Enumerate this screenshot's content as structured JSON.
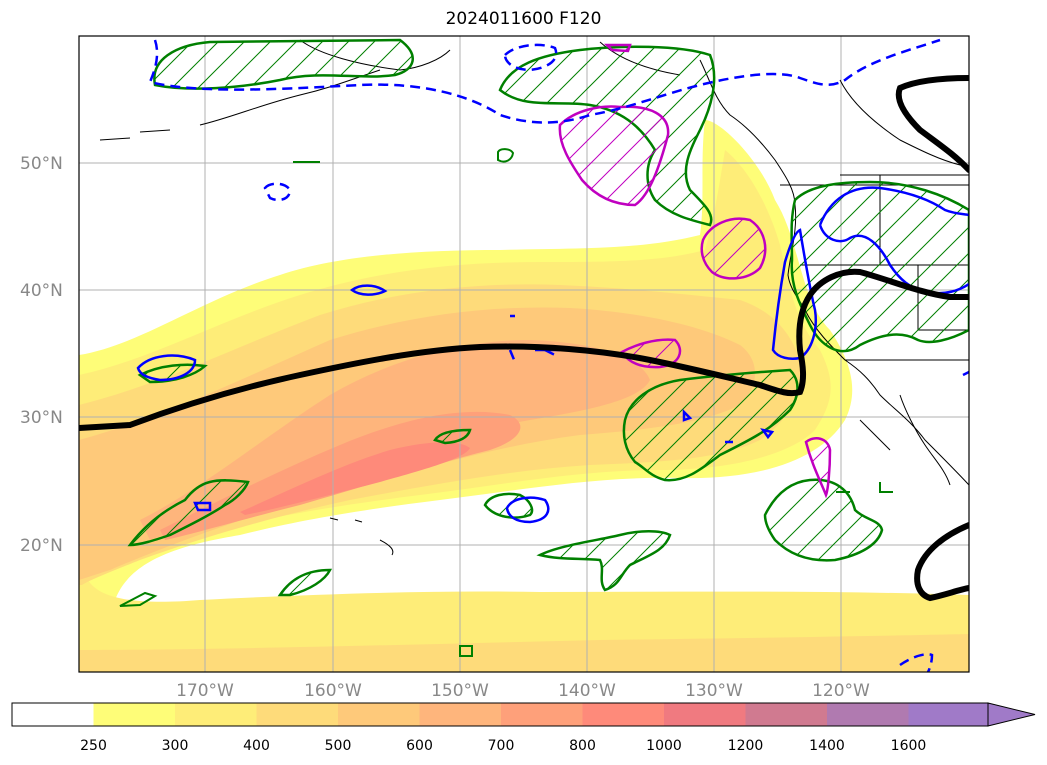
{
  "title": "2024011600 F120",
  "latitude_labels": [
    "50°N",
    "40°N",
    "30°N",
    "20°N"
  ],
  "longitude_labels": [
    "170°W",
    "160°W",
    "150°W",
    "140°W",
    "130°W",
    "120°W"
  ],
  "colorbar": {
    "levels": [
      "250",
      "300",
      "400",
      "500",
      "600",
      "700",
      "800",
      "1000",
      "1200",
      "1400",
      "1600"
    ],
    "colors": [
      "#ffffff",
      "#fefd78",
      "#feed78",
      "#fedb7a",
      "#fec97a",
      "#feb57c",
      "#fea07a",
      "#fe8a7a",
      "#f07a80",
      "#d07a90",
      "#b07ab0",
      "#a07ac8"
    ],
    "extend": "max"
  },
  "colors": {
    "jet_axis": "#000000",
    "green_contour": "#008000",
    "blue_contour": "#0000ff",
    "magenta_contour": "#c000c0",
    "coastline": "#000000",
    "gridline": "#b0b0b0",
    "tick_label": "#888888"
  }
}
